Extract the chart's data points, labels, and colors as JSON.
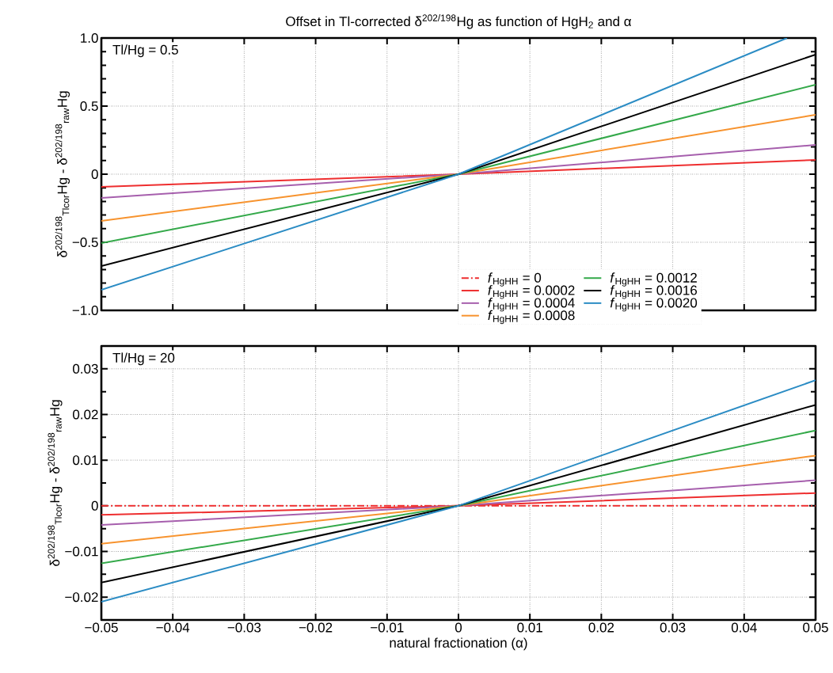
{
  "chart_data": [
    {
      "type": "line",
      "title": "Offset in Tl-corrected δ$^{202/198}$Hg as function of HgH$_{2}$ and α",
      "ylabel": "δ$^{202/198}$$_{Tlcor}$Hg - δ$^{202/198}$$_{raw}$Hg",
      "annotations": [
        "Tl/Hg = 0.5"
      ],
      "x": [
        -0.05,
        0,
        0.05
      ],
      "xlim": [
        -0.05,
        0.05
      ],
      "xticks": [
        -0.05,
        -0.04,
        -0.03,
        -0.02,
        -0.01,
        0,
        0.01,
        0.02,
        0.03,
        0.04,
        0.05
      ],
      "ylim": [
        -1,
        1
      ],
      "yticks": [
        {
          "value": -1,
          "label": "−1.0"
        },
        {
          "value": -0.5,
          "label": "−0.5"
        },
        0,
        0.5,
        {
          "value": 1,
          "label": "1.0"
        }
      ],
      "tick_labels": "y",
      "grid": true,
      "legend": false,
      "series": [
        {
          "color": "#ee2e2f",
          "values": [
            -0.093,
            0,
            0.105
          ]
        },
        {
          "color": "#a65fad",
          "values": [
            -0.174,
            0,
            0.215
          ]
        },
        {
          "color": "#f7932e",
          "values": [
            -0.343,
            0,
            0.436
          ]
        },
        {
          "color": "#34a94a",
          "values": [
            -0.506,
            0,
            0.657
          ]
        },
        {
          "color": "#000000",
          "values": [
            -0.674,
            0,
            0.878
          ]
        },
        {
          "color": "#2b8cc4",
          "x": [
            -0.05,
            0,
            0.046
          ],
          "values": [
            -0.849,
            0,
            1.0
          ]
        }
      ]
    },
    {
      "type": "line",
      "xlabel": "natural fractionation (α)",
      "ylabel": "δ$^{202/198}$$_{Tlcor}$Hg - δ$^{202/198}$$_{raw}$Hg",
      "annotations": [
        "Tl/Hg = 20"
      ],
      "x": [
        -0.05,
        0,
        0.05
      ],
      "xlim": [
        -0.05,
        0.05
      ],
      "xticks": [
        {
          "value": -0.05,
          "label": "−0.05"
        },
        {
          "value": -0.04,
          "label": "−0.04"
        },
        {
          "value": -0.03,
          "label": "−0.03"
        },
        {
          "value": -0.02,
          "label": "−0.02"
        },
        {
          "value": -0.01,
          "label": "−0.01"
        },
        0,
        0.01,
        0.02,
        0.03,
        0.04,
        0.05
      ],
      "ylim": [
        -0.025,
        0.035
      ],
      "yticks": [
        {
          "value": -0.02,
          "label": "−0.02"
        },
        {
          "value": -0.01,
          "label": "−0.01"
        },
        0,
        0.01,
        0.02,
        0.03
      ],
      "grid": true,
      "legend": "top",
      "series": [
        {
          "name": "*f*$_{HgHH}$ = 0",
          "color": "#ee2e2f",
          "line_style": "dashed",
          "values": [
            0,
            0,
            0
          ]
        },
        {
          "name": "*f*$_{HgHH}$ = 0.0002",
          "color": "#ee2e2f",
          "values": [
            -0.002,
            0,
            0.0028
          ]
        },
        {
          "name": "*f*$_{HgHH}$ = 0.0004",
          "color": "#a65fad",
          "values": [
            -0.0042,
            0,
            0.0056
          ]
        },
        {
          "name": "*f*$_{HgHH}$ = 0.0008",
          "color": "#f7932e",
          "values": [
            -0.0083,
            0,
            0.011
          ]
        },
        {
          "name": "*f*$_{HgHH}$ = 0.0012",
          "color": "#34a94a",
          "values": [
            -0.0126,
            0,
            0.0165
          ]
        },
        {
          "name": "*f*$_{HgHH}$ = 0.0016",
          "color": "#000000",
          "values": [
            -0.0168,
            0,
            0.0221
          ]
        },
        {
          "name": "*f*$_{HgHH}$ = 0.0020",
          "color": "#2b8cc4",
          "values": [
            -0.021,
            0,
            0.0275
          ]
        }
      ]
    }
  ]
}
